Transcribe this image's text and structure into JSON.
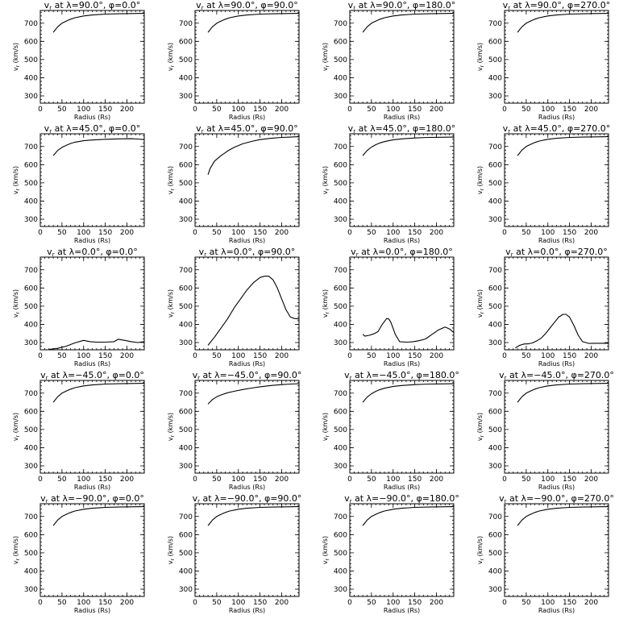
{
  "chart_data": [
    {
      "type": "line",
      "title": "v$_r$ at λ=90.0°, φ=0.0°",
      "title_parts": [
        "v",
        "r",
        " at λ=90.0°, φ=0.0°"
      ],
      "xlabel": "Radius (Rs)",
      "ylabel": "v$_r$ (km/s)",
      "ylabel_parts": [
        "v",
        "r",
        " (km/s)"
      ],
      "xlim": [
        0,
        240
      ],
      "ylim": [
        260,
        770
      ],
      "xticks": [
        0,
        50,
        100,
        150,
        200
      ],
      "yticks": [
        300,
        400,
        500,
        600,
        700
      ],
      "x": [
        30,
        40,
        50,
        60,
        70,
        80,
        100,
        120,
        150,
        180,
        210,
        240
      ],
      "y": [
        650,
        680,
        700,
        712,
        722,
        730,
        740,
        745,
        750,
        752,
        753,
        754
      ]
    },
    {
      "type": "line",
      "title": "v$_r$ at λ=90.0°, φ=90.0°",
      "title_parts": [
        "v",
        "r",
        " at λ=90.0°, φ=90.0°"
      ],
      "xlabel": "Radius (Rs)",
      "ylabel": "v$_r$ (km/s)",
      "ylabel_parts": [
        "v",
        "r",
        " (km/s)"
      ],
      "xlim": [
        0,
        240
      ],
      "ylim": [
        260,
        770
      ],
      "xticks": [
        0,
        50,
        100,
        150,
        200
      ],
      "yticks": [
        300,
        400,
        500,
        600,
        700
      ],
      "x": [
        30,
        40,
        50,
        60,
        70,
        80,
        100,
        120,
        150,
        180,
        210,
        240
      ],
      "y": [
        650,
        680,
        700,
        712,
        722,
        730,
        740,
        745,
        750,
        752,
        753,
        754
      ]
    },
    {
      "type": "line",
      "title": "v$_r$ at λ=90.0°, φ=180.0°",
      "title_parts": [
        "v",
        "r",
        " at λ=90.0°, φ=180.0°"
      ],
      "xlabel": "Radius (Rs)",
      "ylabel": "v$_r$ (km/s)",
      "ylabel_parts": [
        "v",
        "r",
        " (km/s)"
      ],
      "xlim": [
        0,
        240
      ],
      "ylim": [
        260,
        770
      ],
      "xticks": [
        0,
        50,
        100,
        150,
        200
      ],
      "yticks": [
        300,
        400,
        500,
        600,
        700
      ],
      "x": [
        30,
        40,
        50,
        60,
        70,
        80,
        100,
        120,
        150,
        180,
        210,
        240
      ],
      "y": [
        650,
        680,
        700,
        712,
        722,
        730,
        740,
        745,
        750,
        752,
        753,
        754
      ]
    },
    {
      "type": "line",
      "title": "v$_r$ at λ=90.0°, φ=270.0°",
      "title_parts": [
        "v",
        "r",
        " at λ=90.0°, φ=270.0°"
      ],
      "xlabel": "Radius (Rs)",
      "ylabel": "v$_r$ (km/s)",
      "ylabel_parts": [
        "v",
        "r",
        " (km/s)"
      ],
      "xlim": [
        0,
        240
      ],
      "ylim": [
        260,
        770
      ],
      "xticks": [
        0,
        50,
        100,
        150,
        200
      ],
      "yticks": [
        300,
        400,
        500,
        600,
        700
      ],
      "x": [
        30,
        40,
        50,
        60,
        70,
        80,
        100,
        120,
        150,
        180,
        210,
        240
      ],
      "y": [
        650,
        680,
        700,
        712,
        722,
        730,
        740,
        745,
        750,
        752,
        753,
        754
      ]
    },
    {
      "type": "line",
      "title": "v$_r$ at λ=45.0°, φ=0.0°",
      "title_parts": [
        "v",
        "r",
        " at λ=45.0°, φ=0.0°"
      ],
      "xlabel": "Radius (Rs)",
      "ylabel": "v$_r$ (km/s)",
      "ylabel_parts": [
        "v",
        "r",
        " (km/s)"
      ],
      "xlim": [
        0,
        240
      ],
      "ylim": [
        260,
        770
      ],
      "xticks": [
        0,
        50,
        100,
        150,
        200
      ],
      "yticks": [
        300,
        400,
        500,
        600,
        700
      ],
      "x": [
        30,
        40,
        50,
        60,
        70,
        80,
        100,
        120,
        150,
        180,
        210,
        225,
        240
      ],
      "y": [
        650,
        678,
        695,
        707,
        717,
        724,
        732,
        736,
        740,
        742,
        743,
        741,
        738
      ]
    },
    {
      "type": "line",
      "title": "v$_r$ at λ=45.0°, φ=90.0°",
      "title_parts": [
        "v",
        "r",
        " at λ=45.0°, φ=90.0°"
      ],
      "xlabel": "Radius (Rs)",
      "ylabel": "v$_r$ (km/s)",
      "ylabel_parts": [
        "v",
        "r",
        " (km/s)"
      ],
      "xlim": [
        0,
        240
      ],
      "ylim": [
        260,
        770
      ],
      "xticks": [
        0,
        50,
        100,
        150,
        200
      ],
      "yticks": [
        300,
        400,
        500,
        600,
        700
      ],
      "x": [
        30,
        35,
        45,
        60,
        75,
        90,
        110,
        130,
        150,
        175,
        200,
        220,
        240
      ],
      "y": [
        545,
        580,
        620,
        650,
        675,
        695,
        715,
        728,
        738,
        745,
        750,
        752,
        754
      ]
    },
    {
      "type": "line",
      "title": "v$_r$ at λ=45.0°, φ=180.0°",
      "title_parts": [
        "v",
        "r",
        " at λ=45.0°, φ=180.0°"
      ],
      "xlabel": "Radius (Rs)",
      "ylabel": "v$_r$ (km/s)",
      "ylabel_parts": [
        "v",
        "r",
        " (km/s)"
      ],
      "xlim": [
        0,
        240
      ],
      "ylim": [
        260,
        770
      ],
      "xticks": [
        0,
        50,
        100,
        150,
        200
      ],
      "yticks": [
        300,
        400,
        500,
        600,
        700
      ],
      "x": [
        30,
        40,
        50,
        60,
        70,
        80,
        100,
        120,
        150,
        180,
        210,
        240
      ],
      "y": [
        650,
        678,
        697,
        710,
        720,
        727,
        737,
        742,
        747,
        750,
        751,
        752
      ]
    },
    {
      "type": "line",
      "title": "v$_r$ at λ=45.0°, φ=270.0°",
      "title_parts": [
        "v",
        "r",
        " at λ=45.0°, φ=270.0°"
      ],
      "xlabel": "Radius (Rs)",
      "ylabel": "v$_r$ (km/s)",
      "ylabel_parts": [
        "v",
        "r",
        " (km/s)"
      ],
      "xlim": [
        0,
        240
      ],
      "ylim": [
        260,
        770
      ],
      "xticks": [
        0,
        50,
        100,
        150,
        200
      ],
      "yticks": [
        300,
        400,
        500,
        600,
        700
      ],
      "x": [
        30,
        40,
        50,
        60,
        70,
        80,
        100,
        120,
        150,
        180,
        210,
        240
      ],
      "y": [
        650,
        680,
        700,
        712,
        722,
        730,
        740,
        745,
        750,
        752,
        753,
        754
      ]
    },
    {
      "type": "line",
      "title": "v$_r$ at λ=0.0°, φ=0.0°",
      "title_parts": [
        "v",
        "r",
        " at λ=0.0°, φ=0.0°"
      ],
      "xlabel": "Radius (Rs)",
      "ylabel": "v$_r$ (km/s)",
      "ylabel_parts": [
        "v",
        "r",
        " (km/s)"
      ],
      "xlim": [
        0,
        240
      ],
      "ylim": [
        260,
        770
      ],
      "xticks": [
        0,
        50,
        100,
        150,
        200
      ],
      "yticks": [
        300,
        400,
        500,
        600,
        700
      ],
      "x": [
        20,
        40,
        60,
        80,
        100,
        115,
        130,
        150,
        170,
        180,
        195,
        210,
        225,
        240
      ],
      "y": [
        262,
        268,
        280,
        298,
        312,
        305,
        302,
        302,
        305,
        318,
        312,
        305,
        300,
        305
      ]
    },
    {
      "type": "line",
      "title": "v$_r$ at λ=0.0°, φ=90.0°",
      "title_parts": [
        "v",
        "r",
        " at λ=0.0°, φ=90.0°"
      ],
      "xlabel": "Radius (Rs)",
      "ylabel": "v$_r$ (km/s)",
      "ylabel_parts": [
        "v",
        "r",
        " (km/s)"
      ],
      "xlim": [
        0,
        240
      ],
      "ylim": [
        260,
        770
      ],
      "xticks": [
        0,
        50,
        100,
        150,
        200
      ],
      "yticks": [
        300,
        400,
        500,
        600,
        700
      ],
      "x": [
        30,
        45,
        60,
        75,
        90,
        105,
        120,
        135,
        150,
        160,
        170,
        180,
        190,
        200,
        210,
        220,
        230,
        240
      ],
      "y": [
        285,
        330,
        380,
        430,
        490,
        540,
        590,
        630,
        658,
        665,
        665,
        645,
        600,
        540,
        480,
        440,
        432,
        430
      ]
    },
    {
      "type": "line",
      "title": "v$_r$ at λ=0.0°, φ=180.0°",
      "title_parts": [
        "v",
        "r",
        " at λ=0.0°, φ=180.0°"
      ],
      "xlabel": "Radius (Rs)",
      "ylabel": "v$_r$ (km/s)",
      "ylabel_parts": [
        "v",
        "r",
        " (km/s)"
      ],
      "xlim": [
        0,
        240
      ],
      "ylim": [
        260,
        770
      ],
      "xticks": [
        0,
        50,
        100,
        150,
        200
      ],
      "yticks": [
        300,
        400,
        500,
        600,
        700
      ],
      "x": [
        30,
        35,
        45,
        55,
        65,
        75,
        85,
        90,
        95,
        105,
        115,
        130,
        145,
        160,
        175,
        190,
        205,
        220,
        230,
        240
      ],
      "y": [
        345,
        335,
        340,
        348,
        360,
        400,
        432,
        430,
        410,
        345,
        305,
        302,
        304,
        310,
        320,
        345,
        370,
        385,
        375,
        355
      ]
    },
    {
      "type": "line",
      "title": "v$_r$ at λ=0.0°, φ=270.0°",
      "title_parts": [
        "v",
        "r",
        " at λ=0.0°, φ=270.0°"
      ],
      "xlabel": "Radius (Rs)",
      "ylabel": "v$_r$ (km/s)",
      "ylabel_parts": [
        "v",
        "r",
        " (km/s)"
      ],
      "xlim": [
        0,
        240
      ],
      "ylim": [
        260,
        770
      ],
      "xticks": [
        0,
        50,
        100,
        150,
        200
      ],
      "yticks": [
        300,
        400,
        500,
        600,
        700
      ],
      "x": [
        25,
        35,
        45,
        55,
        65,
        75,
        85,
        95,
        105,
        115,
        125,
        135,
        142,
        150,
        160,
        170,
        180,
        195,
        210,
        225,
        240
      ],
      "y": [
        270,
        285,
        292,
        293,
        298,
        310,
        325,
        350,
        380,
        410,
        440,
        455,
        455,
        440,
        395,
        340,
        305,
        295,
        296,
        296,
        296
      ]
    },
    {
      "type": "line",
      "title": "v$_r$ at λ=-45.0°, φ=0.0°",
      "title_parts": [
        "v",
        "r",
        " at λ=−45.0°, φ=0.0°"
      ],
      "xlabel": "Radius (Rs)",
      "ylabel": "v$_r$ (km/s)",
      "ylabel_parts": [
        "v",
        "r",
        " (km/s)"
      ],
      "xlim": [
        0,
        240
      ],
      "ylim": [
        260,
        770
      ],
      "xticks": [
        0,
        50,
        100,
        150,
        200
      ],
      "yticks": [
        300,
        400,
        500,
        600,
        700
      ],
      "x": [
        30,
        40,
        50,
        60,
        70,
        80,
        100,
        120,
        150,
        180,
        210,
        240
      ],
      "y": [
        650,
        680,
        700,
        712,
        722,
        730,
        740,
        745,
        750,
        752,
        753,
        754
      ]
    },
    {
      "type": "line",
      "title": "v$_r$ at λ=-45.0°, φ=90.0°",
      "title_parts": [
        "v",
        "r",
        " at λ=−45.0°, φ=90.0°"
      ],
      "xlabel": "Radius (Rs)",
      "ylabel": "v$_r$ (km/s)",
      "ylabel_parts": [
        "v",
        "r",
        " (km/s)"
      ],
      "xlim": [
        0,
        240
      ],
      "ylim": [
        260,
        770
      ],
      "xticks": [
        0,
        50,
        100,
        150,
        200
      ],
      "yticks": [
        300,
        400,
        500,
        600,
        700
      ],
      "x": [
        30,
        40,
        50,
        60,
        75,
        90,
        110,
        130,
        150,
        175,
        200,
        220,
        240
      ],
      "y": [
        640,
        665,
        680,
        690,
        702,
        710,
        720,
        728,
        735,
        742,
        747,
        750,
        752
      ]
    },
    {
      "type": "line",
      "title": "v$_r$ at λ=-45.0°, φ=180.0°",
      "title_parts": [
        "v",
        "r",
        " at λ=−45.0°, φ=180.0°"
      ],
      "xlabel": "Radius (Rs)",
      "ylabel": "v$_r$ (km/s)",
      "ylabel_parts": [
        "v",
        "r",
        " (km/s)"
      ],
      "xlim": [
        0,
        240
      ],
      "ylim": [
        260,
        770
      ],
      "xticks": [
        0,
        50,
        100,
        150,
        200
      ],
      "yticks": [
        300,
        400,
        500,
        600,
        700
      ],
      "x": [
        30,
        40,
        50,
        60,
        70,
        80,
        100,
        120,
        150,
        180,
        210,
        240
      ],
      "y": [
        650,
        678,
        697,
        710,
        720,
        727,
        737,
        742,
        747,
        750,
        751,
        752
      ]
    },
    {
      "type": "line",
      "title": "v$_r$ at λ=-45.0°, φ=270.0°",
      "title_parts": [
        "v",
        "r",
        " at λ=−45.0°, φ=270.0°"
      ],
      "xlabel": "Radius (Rs)",
      "ylabel": "v$_r$ (km/s)",
      "ylabel_parts": [
        "v",
        "r",
        " (km/s)"
      ],
      "xlim": [
        0,
        240
      ],
      "ylim": [
        260,
        770
      ],
      "xticks": [
        0,
        50,
        100,
        150,
        200
      ],
      "yticks": [
        300,
        400,
        500,
        600,
        700
      ],
      "x": [
        30,
        40,
        50,
        60,
        70,
        80,
        100,
        120,
        150,
        180,
        210,
        240
      ],
      "y": [
        650,
        680,
        700,
        712,
        722,
        730,
        740,
        745,
        750,
        752,
        753,
        754
      ]
    },
    {
      "type": "line",
      "title": "v$_r$ at λ=-90.0°, φ=0.0°",
      "title_parts": [
        "v",
        "r",
        " at λ=−90.0°, φ=0.0°"
      ],
      "xlabel": "Radius (Rs)",
      "ylabel": "v$_r$ (km/s)",
      "ylabel_parts": [
        "v",
        "r",
        " (km/s)"
      ],
      "xlim": [
        0,
        240
      ],
      "ylim": [
        260,
        770
      ],
      "xticks": [
        0,
        50,
        100,
        150,
        200
      ],
      "yticks": [
        300,
        400,
        500,
        600,
        700
      ],
      "x": [
        30,
        40,
        50,
        60,
        70,
        80,
        100,
        120,
        150,
        180,
        210,
        240
      ],
      "y": [
        650,
        680,
        700,
        712,
        722,
        730,
        740,
        745,
        750,
        752,
        753,
        754
      ]
    },
    {
      "type": "line",
      "title": "v$_r$ at λ=-90.0°, φ=90.0°",
      "title_parts": [
        "v",
        "r",
        " at λ=−90.0°, φ=90.0°"
      ],
      "xlabel": "Radius (Rs)",
      "ylabel": "v$_r$ (km/s)",
      "ylabel_parts": [
        "v",
        "r",
        " (km/s)"
      ],
      "xlim": [
        0,
        240
      ],
      "ylim": [
        260,
        770
      ],
      "xticks": [
        0,
        50,
        100,
        150,
        200
      ],
      "yticks": [
        300,
        400,
        500,
        600,
        700
      ],
      "x": [
        30,
        40,
        50,
        60,
        70,
        80,
        100,
        120,
        150,
        180,
        210,
        240
      ],
      "y": [
        650,
        680,
        700,
        712,
        722,
        730,
        740,
        745,
        750,
        752,
        753,
        754
      ]
    },
    {
      "type": "line",
      "title": "v$_r$ at λ=-90.0°, φ=180.0°",
      "title_parts": [
        "v",
        "r",
        " at λ=−90.0°, φ=180.0°"
      ],
      "xlabel": "Radius (Rs)",
      "ylabel": "v$_r$ (km/s)",
      "ylabel_parts": [
        "v",
        "r",
        " (km/s)"
      ],
      "xlim": [
        0,
        240
      ],
      "ylim": [
        260,
        770
      ],
      "xticks": [
        0,
        50,
        100,
        150,
        200
      ],
      "yticks": [
        300,
        400,
        500,
        600,
        700
      ],
      "x": [
        30,
        40,
        50,
        60,
        70,
        80,
        100,
        120,
        150,
        180,
        210,
        240
      ],
      "y": [
        650,
        680,
        700,
        712,
        722,
        730,
        740,
        745,
        750,
        752,
        753,
        754
      ]
    },
    {
      "type": "line",
      "title": "v$_r$ at λ=-90.0°, φ=270.0°",
      "title_parts": [
        "v",
        "r",
        " at λ=−90.0°, φ=270.0°"
      ],
      "xlabel": "Radius (Rs)",
      "ylabel": "v$_r$ (km/s)",
      "ylabel_parts": [
        "v",
        "r",
        " (km/s)"
      ],
      "xlim": [
        0,
        240
      ],
      "ylim": [
        260,
        770
      ],
      "xticks": [
        0,
        50,
        100,
        150,
        200
      ],
      "yticks": [
        300,
        400,
        500,
        600,
        700
      ],
      "x": [
        30,
        40,
        50,
        60,
        70,
        80,
        100,
        120,
        150,
        180,
        210,
        240
      ],
      "y": [
        650,
        680,
        700,
        712,
        722,
        730,
        740,
        745,
        750,
        752,
        753,
        754
      ]
    }
  ]
}
